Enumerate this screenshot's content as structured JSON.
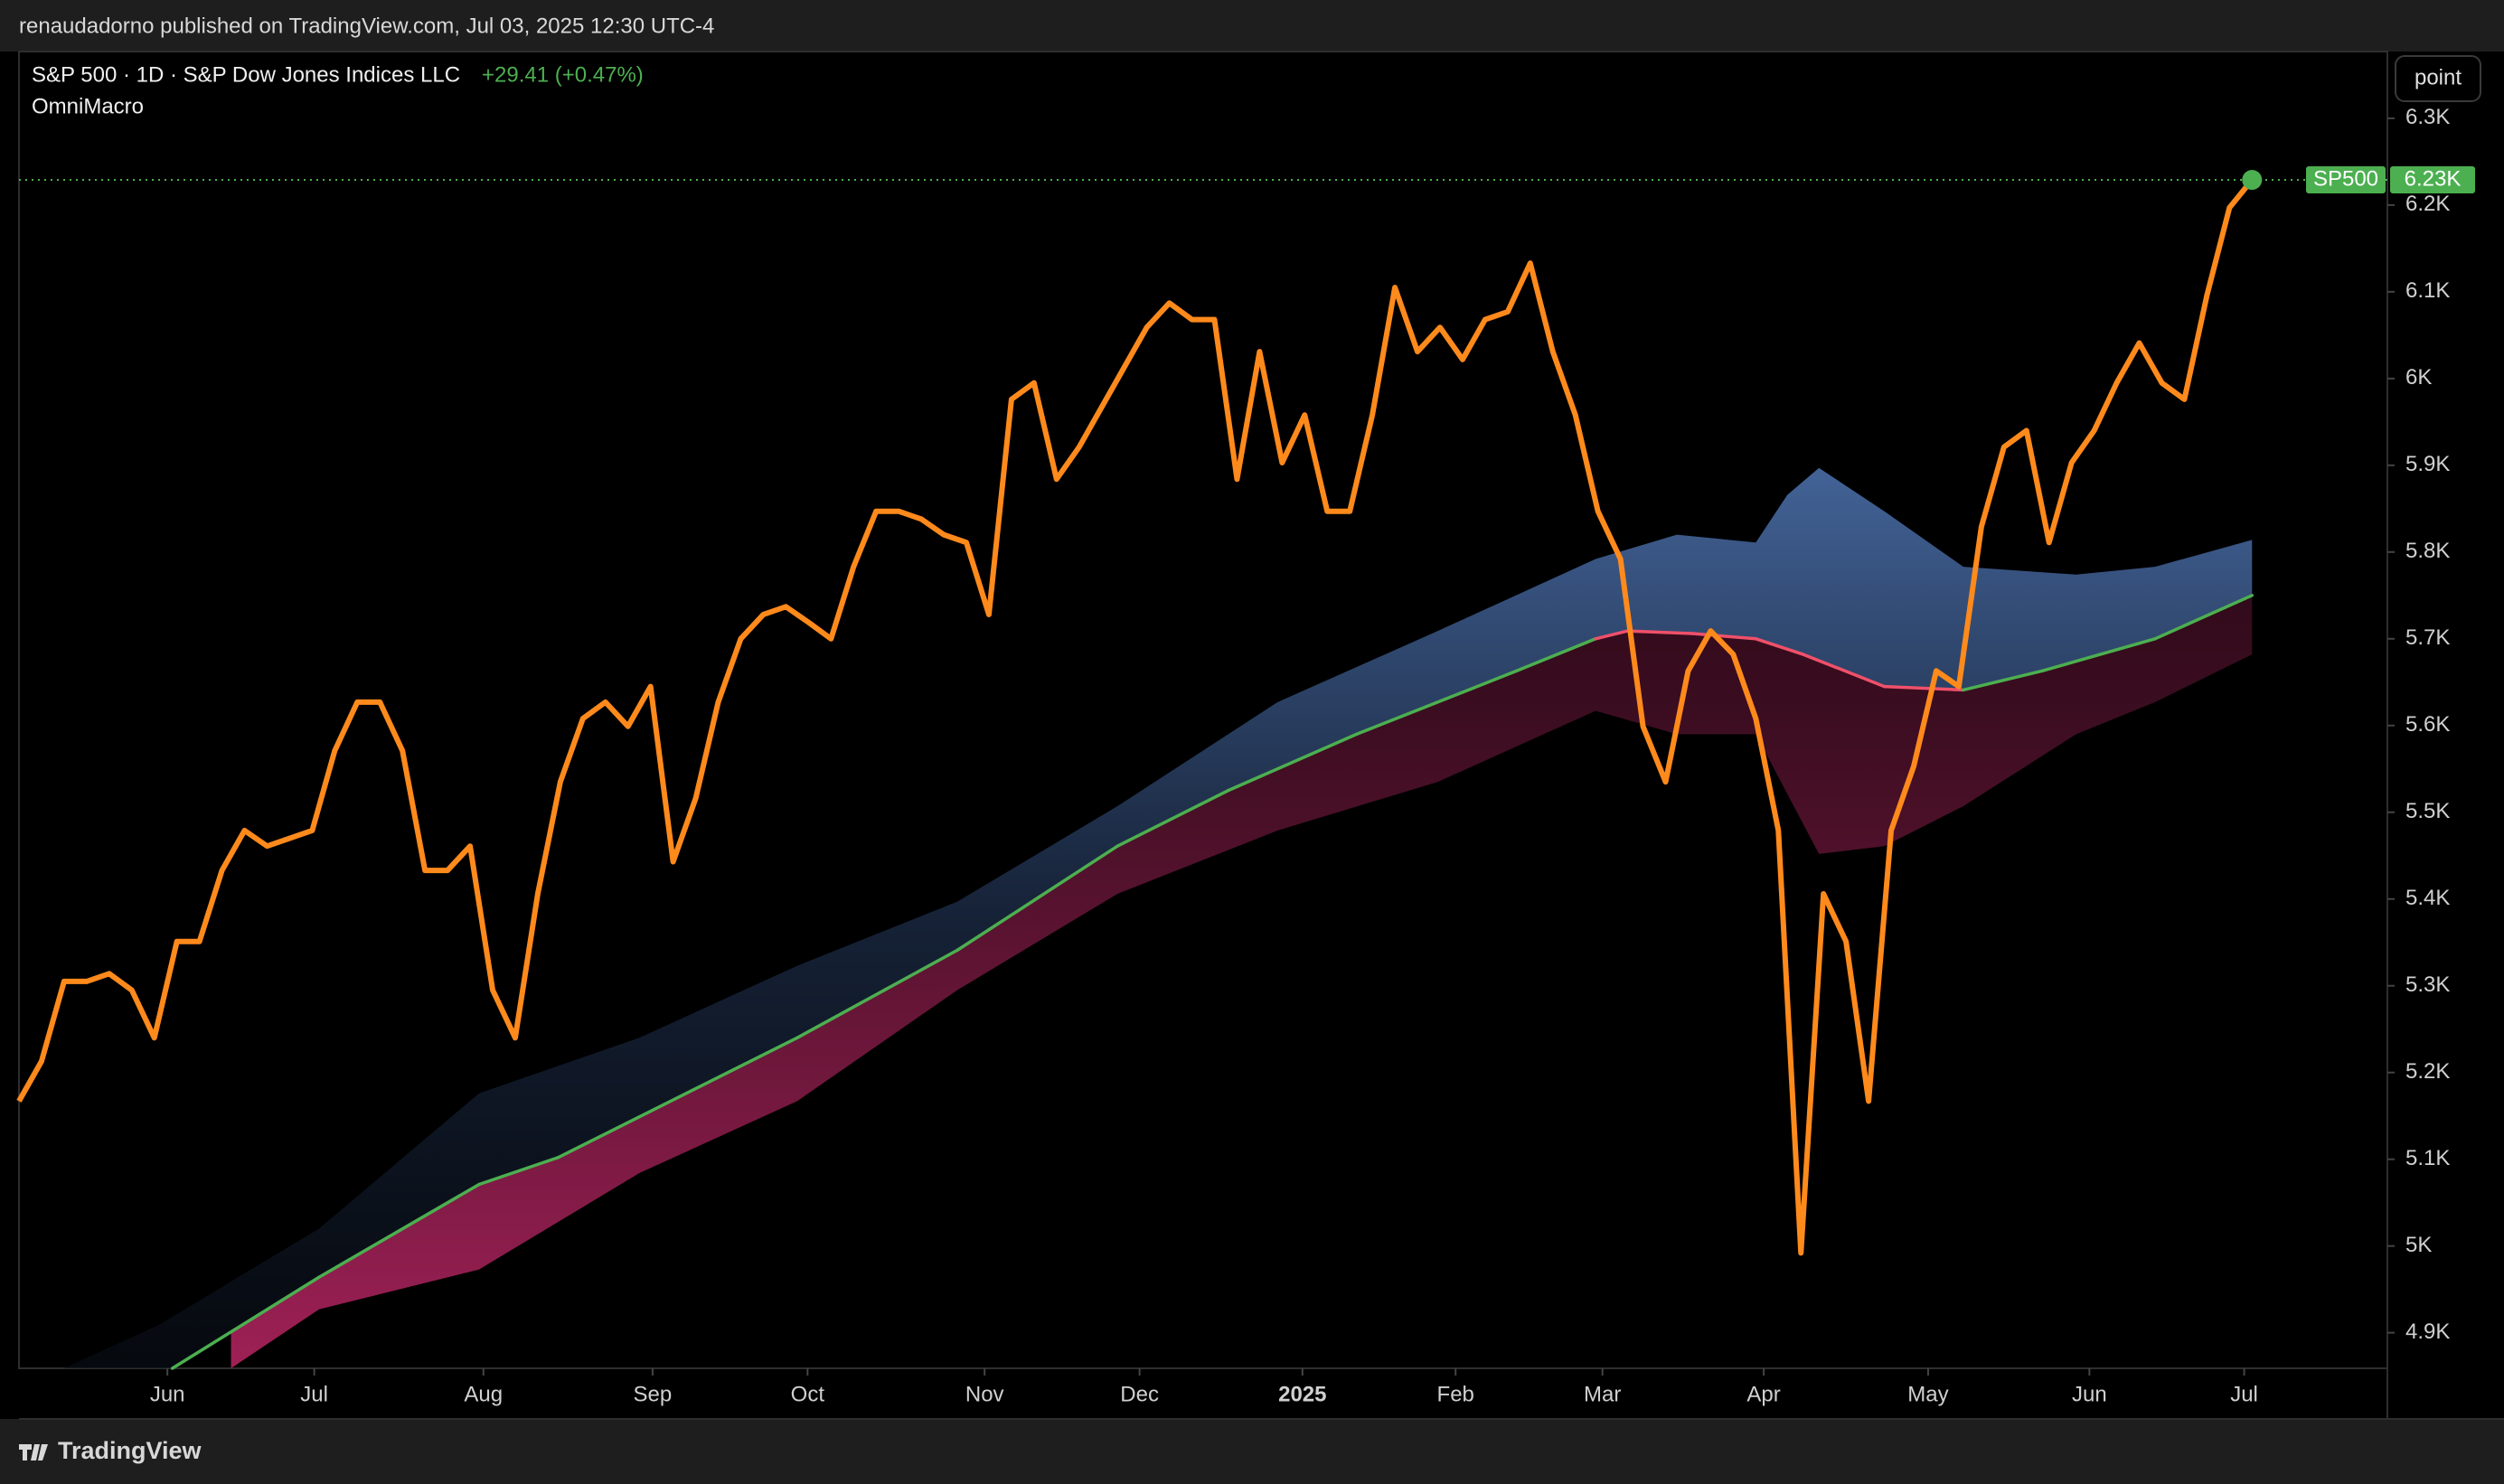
{
  "header": {
    "published": "renaudadorno published on TradingView.com, Jul 03, 2025 12:30 UTC-4"
  },
  "footer": {
    "brand": "TradingView"
  },
  "chart_data": {
    "type": "line",
    "title": "S&P 500 · 1D · S&P Dow Jones Indices LLC",
    "change": "+29.41 (+0.47%)",
    "indicator": "OmniMacro",
    "unit_button": "point",
    "grid": false,
    "xlim": [
      0,
      105
    ],
    "ylim": [
      4859,
      6377
    ],
    "xticks": [
      {
        "value": 6.58,
        "label": "Jun"
      },
      {
        "value": 13.09,
        "label": "Jul"
      },
      {
        "value": 20.59,
        "label": "Aug"
      },
      {
        "value": 28.09,
        "label": "Sep"
      },
      {
        "value": 34.96,
        "label": "Oct"
      },
      {
        "value": 42.81,
        "label": "Nov"
      },
      {
        "value": 49.68,
        "label": "Dec"
      },
      {
        "value": 56.9,
        "label": "2025"
      },
      {
        "value": 63.69,
        "label": "Feb"
      },
      {
        "value": 70.2,
        "label": "Mar"
      },
      {
        "value": 77.35,
        "label": "Apr"
      },
      {
        "value": 84.64,
        "label": "May"
      },
      {
        "value": 91.79,
        "label": "Jun"
      },
      {
        "value": 98.65,
        "label": "Jul"
      }
    ],
    "yticks": [
      {
        "value": 4900,
        "label": "4.9K"
      },
      {
        "value": 5000,
        "label": "5K"
      },
      {
        "value": 5100,
        "label": "5.1K"
      },
      {
        "value": 5200,
        "label": "5.2K"
      },
      {
        "value": 5300,
        "label": "5.3K"
      },
      {
        "value": 5400,
        "label": "5.4K"
      },
      {
        "value": 5500,
        "label": "5.5K"
      },
      {
        "value": 5600,
        "label": "5.6K"
      },
      {
        "value": 5700,
        "label": "5.7K"
      },
      {
        "value": 5800,
        "label": "5.8K"
      },
      {
        "value": 5900,
        "label": "5.9K"
      },
      {
        "value": 6000,
        "label": "6K"
      },
      {
        "value": 6100,
        "label": "6.1K"
      },
      {
        "value": 6200,
        "label": "6.2K"
      },
      {
        "value": 6300,
        "label": "6.3K"
      }
    ],
    "series": [
      {
        "name": "SP500",
        "style": "line",
        "color": "#ff8a1c",
        "tag_color": "#4caf50",
        "x": [
          0,
          1,
          2,
          3,
          4,
          5,
          6,
          7,
          8,
          9,
          10,
          11,
          12,
          13,
          14,
          15,
          16,
          17,
          18,
          19,
          20,
          21,
          22,
          23,
          24,
          25,
          26,
          27,
          28,
          29,
          30,
          31,
          32,
          33,
          34,
          35,
          36,
          37,
          38,
          39,
          40,
          41,
          42,
          43,
          44,
          45,
          46,
          47,
          48,
          49,
          50,
          51,
          52,
          53,
          54,
          55,
          56,
          57,
          58,
          59,
          60,
          61,
          62,
          63,
          64,
          65,
          66,
          67,
          68,
          69,
          70,
          71,
          72,
          73,
          74,
          75,
          76,
          77,
          78,
          79,
          80,
          81,
          82,
          83,
          84,
          85,
          86,
          87,
          88,
          89,
          90,
          91,
          92,
          93,
          94,
          95,
          96,
          97,
          98,
          99
        ],
        "values": [
          5167,
          5213,
          5305,
          5305,
          5314,
          5295,
          5240,
          5351,
          5351,
          5433,
          5479,
          5461,
          5470,
          5479,
          5571,
          5627,
          5627,
          5571,
          5433,
          5433,
          5461,
          5295,
          5240,
          5406,
          5535,
          5608,
          5627,
          5599,
          5645,
          5443,
          5516,
          5627,
          5700,
          5728,
          5737,
          5719,
          5700,
          5783,
          5847,
          5847,
          5838,
          5820,
          5811,
          5728,
          5976,
          5995,
          5884,
          5921,
          5967,
          6013,
          6059,
          6087,
          6068,
          6068,
          5884,
          6031,
          5903,
          5958,
          5847,
          5847,
          5958,
          6105,
          6031,
          6059,
          6022,
          6068,
          6077,
          6133,
          6031,
          5958,
          5847,
          5792,
          5599,
          5535,
          5663,
          5709,
          5682,
          5608,
          5479,
          4992,
          5406,
          5351,
          5167,
          5479,
          5553,
          5663,
          5645,
          5829,
          5921,
          5940,
          5811,
          5903,
          5940,
          5995,
          6041,
          5995,
          5976,
          6096,
          6197,
          6229
        ],
        "value_labels": [
          null,
          null,
          null,
          null,
          null,
          null,
          null,
          null,
          null,
          null,
          null,
          null,
          null,
          null,
          null,
          null,
          null,
          null,
          null,
          null,
          null,
          null,
          null,
          null,
          null,
          null,
          null,
          null,
          null,
          null,
          null,
          null,
          null,
          null,
          null,
          null,
          null,
          null,
          null,
          null,
          null,
          null,
          null,
          null,
          null,
          null,
          null,
          null,
          null,
          null,
          null,
          null,
          null,
          null,
          null,
          null,
          null,
          null,
          null,
          null,
          null,
          null,
          null,
          null,
          null,
          null,
          null,
          null,
          null,
          null,
          null,
          null,
          null,
          null,
          null,
          null,
          null,
          null,
          null,
          null,
          null,
          null,
          null,
          null,
          null,
          null,
          null,
          null,
          null,
          null,
          null,
          null,
          null,
          null,
          null,
          null,
          null,
          null,
          null,
          "6.23K"
        ]
      },
      {
        "style": "band-upper",
        "color": "#4a6ea8",
        "x": [
          2.0,
          6.2,
          13.3,
          20.4,
          27.5,
          34.5,
          41.6,
          48.7,
          55.8,
          62.9,
          69.9,
          73.5,
          77.0,
          78.4,
          79.8,
          82.7,
          86.2,
          91.2,
          94.7,
          99
        ],
        "values": [
          4859,
          4909,
          5020,
          5176,
          5240,
          5323,
          5397,
          5507,
          5627,
          5709,
          5792,
          5820,
          5811,
          5866,
          5897,
          5847,
          5783,
          5774,
          5783,
          5814
        ]
      },
      {
        "style": "band-lower",
        "color": "#b0245f",
        "x": [
          9.4,
          13.3,
          20.4,
          27.5,
          34.5,
          41.6,
          48.7,
          55.8,
          62.9,
          69.9,
          73.5,
          77.0,
          79.8,
          82.7,
          86.2,
          91.2,
          94.7,
          99
        ],
        "values": [
          4859,
          4927,
          4973,
          5084,
          5167,
          5295,
          5406,
          5479,
          5535,
          5617,
          5590,
          5590,
          5452,
          5461,
          5507,
          5590,
          5627,
          5682
        ]
      },
      {
        "style": "ma",
        "color": "#4caf50",
        "x": [
          6.8,
          13.3,
          20.4,
          23.9,
          34.5,
          41.6,
          48.7,
          53.6,
          59.3,
          66.4,
          69.9,
          71.3,
          74.2,
          77.0,
          79.1,
          82.7,
          86.2,
          89.7,
          94.7,
          99
        ],
        "values": [
          4859,
          4964,
          5071,
          5102,
          5240,
          5341,
          5461,
          5525,
          5590,
          5663,
          5700,
          5709,
          5706,
          5700,
          5682,
          5645,
          5641,
          5663,
          5700,
          5750
        ],
        "segment_colors": [
          "#4caf50",
          "#4caf50",
          "#4caf50",
          "#4caf50",
          "#4caf50",
          "#4caf50",
          "#4caf50",
          "#4caf50",
          "#4caf50",
          "#4caf50",
          "#f0506a",
          "#f0506a",
          "#f0506a",
          "#f0506a",
          "#f0506a",
          "#f0506a",
          "#4caf50",
          "#4caf50",
          "#4caf50",
          "#4caf50"
        ]
      }
    ]
  }
}
